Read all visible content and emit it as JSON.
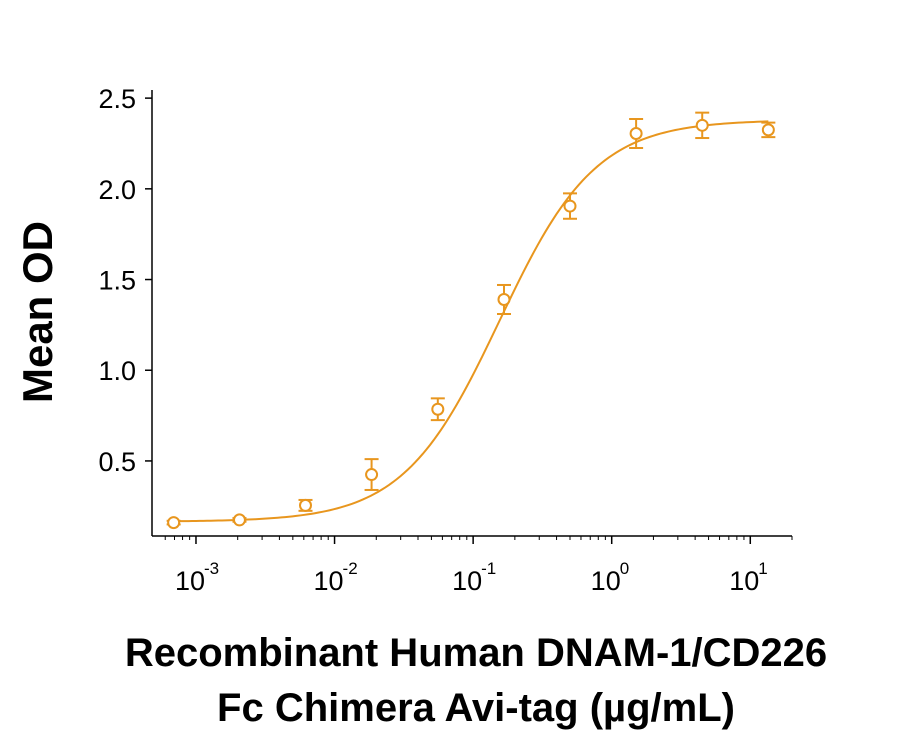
{
  "chart_data": {
    "type": "scatter",
    "ylabel": "Mean OD",
    "xlabel_lines": [
      "Recombinant Human DNAM-1/CD226",
      "Fc Chimera Avi-tag (µg/mL)"
    ],
    "x_scale": "log",
    "xlim": [
      0.00055,
      20
    ],
    "ylim": [
      0.1,
      2.52
    ],
    "y_ticks": [
      0.5,
      1.0,
      1.5,
      2.0,
      2.5
    ],
    "y_tick_labels": [
      "0.5",
      "1.0",
      "1.5",
      "2.0",
      "2.5"
    ],
    "x_major_exponents": [
      -3,
      -2,
      -1,
      0,
      1
    ],
    "x_tick_base": "10",
    "x_tick_exponent_labels": [
      "-3",
      "-2",
      "-1",
      "0",
      "1"
    ],
    "grid": false,
    "legend": "none",
    "colors": {
      "series": "#E8961E",
      "axis": "#000000"
    },
    "series": [
      {
        "x": [
          0.00069,
          0.00206,
          0.00617,
          0.0185,
          0.0556,
          0.167,
          0.5,
          1.5,
          4.5,
          13.5
        ],
        "y": [
          0.16,
          0.175,
          0.255,
          0.425,
          0.785,
          1.39,
          1.905,
          2.305,
          2.35,
          2.325
        ],
        "error": [
          0.01,
          0.01,
          0.03,
          0.085,
          0.06,
          0.08,
          0.07,
          0.08,
          0.07,
          0.04
        ],
        "marker": "open-circle",
        "fit": {
          "model": "4PL",
          "bottom": 0.165,
          "top": 2.38,
          "ec50": 0.155,
          "hill": 1.25
        }
      }
    ]
  }
}
